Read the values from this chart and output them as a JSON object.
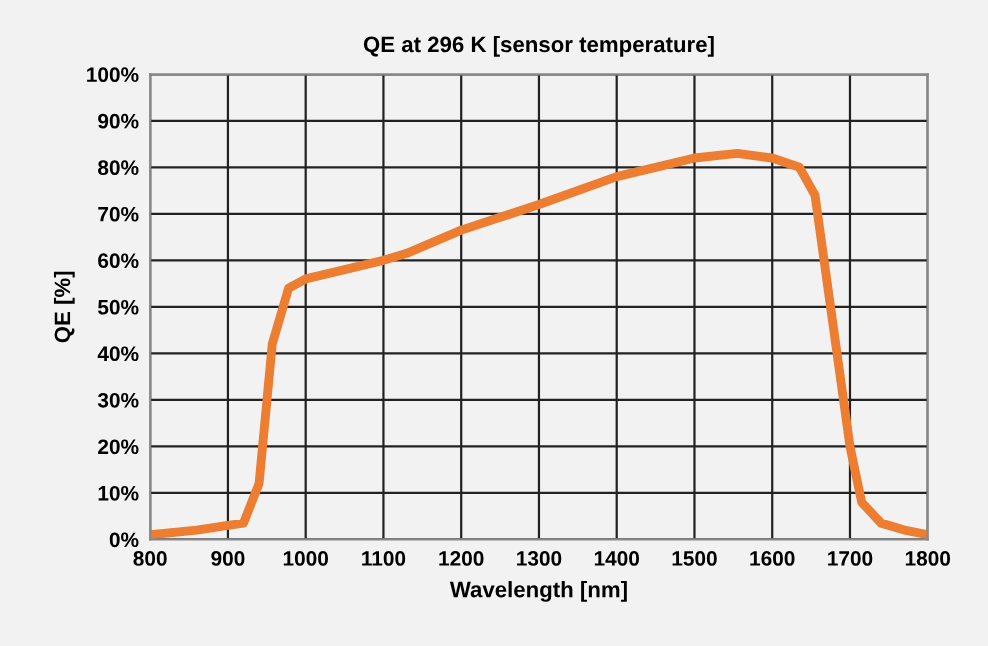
{
  "chart_data": {
    "type": "line",
    "title": "QE at 296 K [sensor temperature]",
    "xlabel": "Wavelength [nm]",
    "ylabel": "QE [%]",
    "x": [
      800,
      860,
      900,
      920,
      940,
      957,
      978,
      1000,
      1050,
      1100,
      1130,
      1200,
      1300,
      1400,
      1450,
      1500,
      1555,
      1600,
      1635,
      1655,
      1700,
      1715,
      1740,
      1770,
      1800
    ],
    "series": [
      {
        "color": "#ed7d31",
        "values": [
          1,
          2,
          3,
          3.5,
          12,
          42,
          54,
          56,
          58,
          60,
          61.5,
          66.5,
          72,
          78,
          80,
          82,
          83,
          82,
          80,
          74,
          20,
          8,
          3.5,
          2,
          1
        ]
      }
    ],
    "xlim": [
      800,
      1800
    ],
    "xticks": [
      800,
      900,
      1000,
      1100,
      1200,
      1300,
      1400,
      1500,
      1600,
      1700,
      1800
    ],
    "ylim": [
      0,
      100
    ],
    "yticks": [
      {
        "value": 0,
        "label": "0%"
      },
      {
        "value": 10,
        "label": "10%"
      },
      {
        "value": 20,
        "label": "20%"
      },
      {
        "value": 30,
        "label": "30%"
      },
      {
        "value": 40,
        "label": "40%"
      },
      {
        "value": 50,
        "label": "50%"
      },
      {
        "value": 60,
        "label": "60%"
      },
      {
        "value": 70,
        "label": "70%"
      },
      {
        "value": 80,
        "label": "80%"
      },
      {
        "value": 90,
        "label": "90%"
      },
      {
        "value": 100,
        "label": "100%"
      }
    ],
    "grid": true,
    "line_style": "solid",
    "marker": "none",
    "legend": false
  }
}
